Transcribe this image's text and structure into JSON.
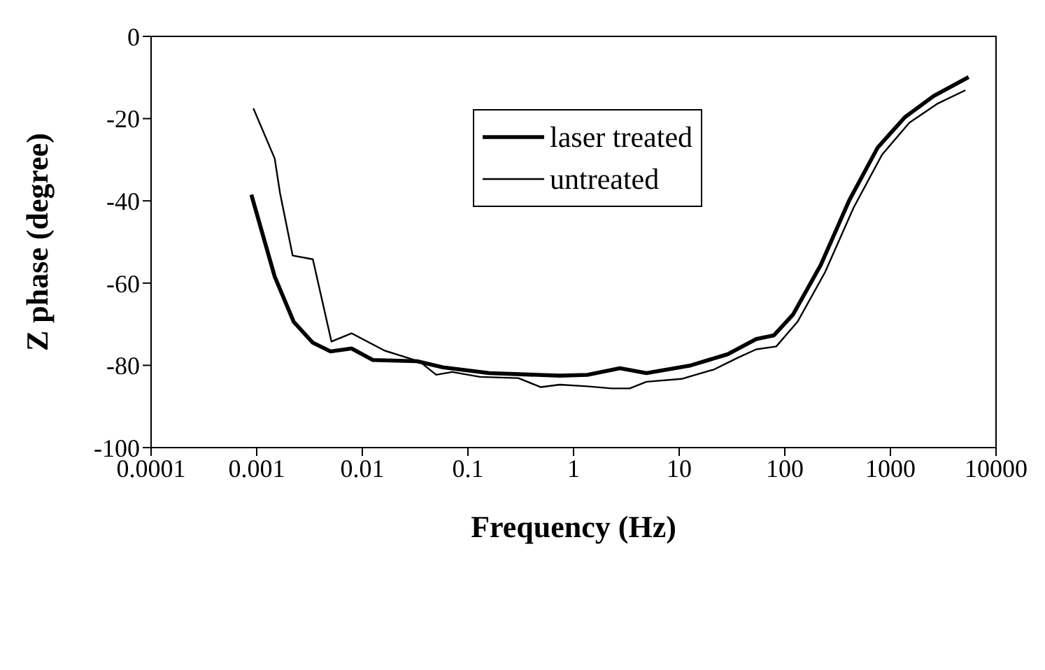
{
  "chart_data": {
    "type": "line",
    "xlabel": "Frequency (Hz)",
    "ylabel": "Z phase (degree)",
    "log": "x",
    "xlim": [
      0.0001,
      10000
    ],
    "xticks": [
      0.0001,
      0.001,
      0.01,
      0.1,
      1,
      10,
      100,
      1000,
      10000
    ],
    "ylim": [
      -100,
      0
    ],
    "yticks": [
      -100,
      -80,
      -60,
      -40,
      -20,
      0
    ],
    "grid": false,
    "legend": "top right",
    "line_style": "solid",
    "marker": "none",
    "series": [
      {
        "name": "laser treated",
        "color": "#000000",
        "x": [
          0.00089,
          0.00148,
          0.00224,
          0.0034,
          0.005,
          0.0079,
          0.0126,
          0.033,
          0.058,
          0.16,
          0.74,
          1.35,
          2.75,
          4.9,
          12.9,
          28.8,
          53.7,
          79,
          120,
          219,
          407,
          759,
          1380,
          2570,
          5500
        ],
        "values": [
          -38.5,
          -58.4,
          -69.4,
          -74.5,
          -76.6,
          -75.9,
          -78.7,
          -79,
          -80.5,
          -81.9,
          -82.5,
          -82.3,
          -80.7,
          -81.9,
          -80,
          -77.3,
          -73.6,
          -72.7,
          -67.6,
          -55.6,
          -39.9,
          -27,
          -19.6,
          -14.5,
          -9.9
        ]
      },
      {
        "name": "untreated",
        "color": "#000000",
        "x": [
          0.00093,
          0.00148,
          0.00166,
          0.00219,
          0.0034,
          0.0051,
          0.0079,
          0.0162,
          0.035,
          0.05,
          0.071,
          0.13,
          0.3,
          0.49,
          0.74,
          1.35,
          2.3,
          3.4,
          4.9,
          10.5,
          21.4,
          35.5,
          53.7,
          83,
          132,
          240,
          447,
          832,
          1510,
          2820,
          5130
        ],
        "values": [
          -17.5,
          -29.7,
          -38,
          -53.3,
          -54.2,
          -74.2,
          -72.2,
          -76.4,
          -79.1,
          -82.3,
          -81.6,
          -82.8,
          -83.1,
          -85.3,
          -84.7,
          -85.1,
          -85.6,
          -85.6,
          -84,
          -83.3,
          -81,
          -78.2,
          -76.1,
          -75.4,
          -69.4,
          -57.4,
          -41.7,
          -28.8,
          -21,
          -16.3,
          -13.1
        ]
      }
    ]
  }
}
